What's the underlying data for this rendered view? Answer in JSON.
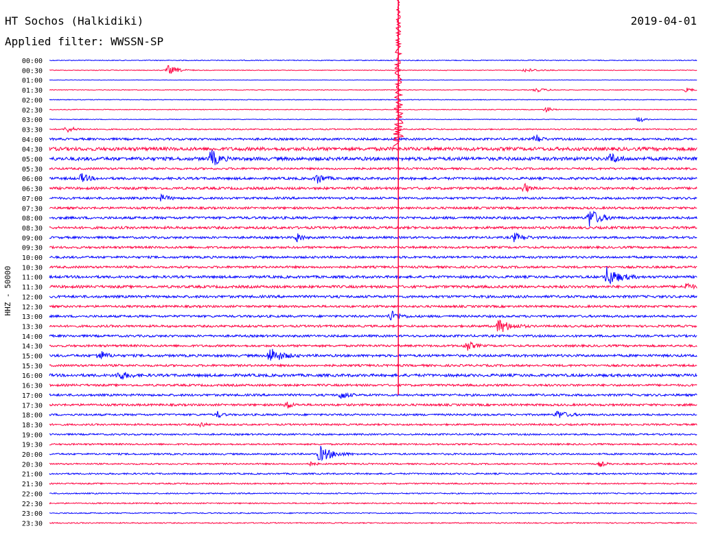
{
  "chart_data": {
    "type": "line",
    "title": "HT Sochos (Halkidiki)",
    "subtitle": "Applied filter: WWSSN-SP",
    "date": "2019-04-01",
    "ylabel": "HHZ - 50000",
    "row_labels": [
      "00:00",
      "00:30",
      "01:00",
      "01:30",
      "02:00",
      "02:30",
      "03:00",
      "03:30",
      "04:00",
      "04:30",
      "05:00",
      "05:30",
      "06:00",
      "06:30",
      "07:00",
      "07:30",
      "08:00",
      "08:30",
      "09:00",
      "09:30",
      "10:00",
      "10:30",
      "11:00",
      "11:30",
      "12:00",
      "12:30",
      "13:00",
      "13:30",
      "14:00",
      "14:30",
      "15:00",
      "15:30",
      "16:00",
      "16:30",
      "17:00",
      "17:30",
      "18:00",
      "18:30",
      "19:00",
      "19:30",
      "20:00",
      "20:30",
      "21:00",
      "21:30",
      "22:00",
      "22:30",
      "23:00",
      "23:30"
    ],
    "colors": [
      "#0000ff",
      "#ff0040"
    ],
    "row_noise": [
      0.6,
      0.5,
      0.3,
      0.5,
      0.5,
      0.5,
      0.5,
      0.9,
      1.6,
      2.5,
      2.5,
      1.5,
      1.8,
      1.8,
      1.6,
      1.6,
      1.8,
      1.8,
      1.6,
      1.6,
      1.6,
      1.6,
      1.8,
      1.9,
      1.8,
      1.6,
      1.6,
      1.6,
      1.6,
      1.6,
      1.8,
      1.6,
      2.0,
      1.6,
      1.6,
      1.6,
      1.4,
      1.3,
      1.2,
      1.2,
      1.2,
      1.1,
      1.1,
      1.0,
      0.9,
      0.9,
      0.8,
      0.8
    ],
    "events": [
      {
        "row": 1,
        "minute": 5.5,
        "amp": 7,
        "dur": 1.2
      },
      {
        "row": 1,
        "minute": 22.0,
        "amp": 3,
        "dur": 1.5
      },
      {
        "row": 3,
        "minute": 22.5,
        "amp": 3,
        "dur": 1.3
      },
      {
        "row": 3,
        "minute": 29.5,
        "amp": 4,
        "dur": 0.6
      },
      {
        "row": 5,
        "minute": 23.0,
        "amp": 5,
        "dur": 0.6
      },
      {
        "row": 6,
        "minute": 27.3,
        "amp": 5,
        "dur": 0.6
      },
      {
        "row": 7,
        "minute": 0.8,
        "amp": 5,
        "dur": 1.0
      },
      {
        "row": 8,
        "minute": 22.5,
        "amp": 8,
        "dur": 0.6
      },
      {
        "row": 10,
        "minute": 7.5,
        "amp": 14,
        "dur": 0.8
      },
      {
        "row": 10,
        "minute": 26.0,
        "amp": 8,
        "dur": 0.8
      },
      {
        "row": 12,
        "minute": 1.5,
        "amp": 7,
        "dur": 0.8
      },
      {
        "row": 12,
        "minute": 12.4,
        "amp": 8,
        "dur": 0.8
      },
      {
        "row": 13,
        "minute": 22.0,
        "amp": 7,
        "dur": 0.5
      },
      {
        "row": 14,
        "minute": 5.2,
        "amp": 5,
        "dur": 0.8
      },
      {
        "row": 16,
        "minute": 25.0,
        "amp": 14,
        "dur": 1.2
      },
      {
        "row": 18,
        "minute": 11.5,
        "amp": 8,
        "dur": 0.5
      },
      {
        "row": 18,
        "minute": 21.5,
        "amp": 6,
        "dur": 1.2
      },
      {
        "row": 22,
        "minute": 25.8,
        "amp": 14,
        "dur": 1.5
      },
      {
        "row": 23,
        "minute": 29.5,
        "amp": 6,
        "dur": 0.6
      },
      {
        "row": 26,
        "minute": 15.8,
        "amp": 8,
        "dur": 1.0
      },
      {
        "row": 27,
        "minute": 20.8,
        "amp": 11,
        "dur": 1.4
      },
      {
        "row": 29,
        "minute": 19.3,
        "amp": 8,
        "dur": 0.8
      },
      {
        "row": 30,
        "minute": 2.3,
        "amp": 8,
        "dur": 0.8
      },
      {
        "row": 30,
        "minute": 10.2,
        "amp": 12,
        "dur": 1.4
      },
      {
        "row": 32,
        "minute": 3.2,
        "amp": 6,
        "dur": 1.2
      },
      {
        "row": 34,
        "minute": 13.5,
        "amp": 6,
        "dur": 0.8
      },
      {
        "row": 35,
        "minute": 11.0,
        "amp": 7,
        "dur": 0.5
      },
      {
        "row": 36,
        "minute": 7.8,
        "amp": 5,
        "dur": 0.5
      },
      {
        "row": 36,
        "minute": 23.5,
        "amp": 6,
        "dur": 1.2
      },
      {
        "row": 37,
        "minute": 7.0,
        "amp": 4,
        "dur": 0.5
      },
      {
        "row": 40,
        "minute": 12.5,
        "amp": 12,
        "dur": 1.6
      },
      {
        "row": 41,
        "minute": 12.0,
        "amp": 4,
        "dur": 0.6
      },
      {
        "row": 41,
        "minute": 25.5,
        "amp": 4,
        "dur": 0.6
      }
    ],
    "main_event": {
      "row": 9,
      "minute": 16.15,
      "amp": 75,
      "dur": 60
    }
  }
}
